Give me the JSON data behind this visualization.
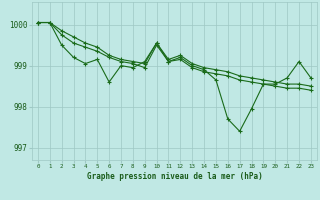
{
  "title": "Graphe pression niveau de la mer (hPa)",
  "x_labels": [
    "0",
    "1",
    "2",
    "3",
    "4",
    "5",
    "6",
    "7",
    "8",
    "9",
    "10",
    "11",
    "12",
    "13",
    "14",
    "15",
    "16",
    "17",
    "18",
    "19",
    "20",
    "21",
    "22",
    "23"
  ],
  "line1": [
    1000.05,
    1000.05,
    999.85,
    999.7,
    999.55,
    999.45,
    999.25,
    999.15,
    999.1,
    999.05,
    999.55,
    999.15,
    999.25,
    999.05,
    998.95,
    998.9,
    998.85,
    998.75,
    998.7,
    998.65,
    998.6,
    998.55,
    998.55,
    998.5
  ],
  "line2": [
    1000.05,
    1000.05,
    999.75,
    999.55,
    999.45,
    999.35,
    999.2,
    999.1,
    999.05,
    998.95,
    999.5,
    999.1,
    999.15,
    998.95,
    998.85,
    998.8,
    998.75,
    998.65,
    998.6,
    998.55,
    998.5,
    998.45,
    998.45,
    998.4
  ],
  "line3": [
    1000.05,
    1000.05,
    999.5,
    999.2,
    999.05,
    999.15,
    998.6,
    999.0,
    998.95,
    999.1,
    999.55,
    999.1,
    999.2,
    999.0,
    998.9,
    998.65,
    997.7,
    997.4,
    997.95,
    998.55,
    998.55,
    998.7,
    999.1,
    998.7
  ],
  "line_color": "#1a6b1a",
  "bg_color": "#c0e8e4",
  "grid_color": "#9ec8c4",
  "text_color": "#1a5c1a",
  "ylim": [
    996.7,
    1000.55
  ],
  "yticks": [
    997,
    998,
    999,
    1000
  ]
}
